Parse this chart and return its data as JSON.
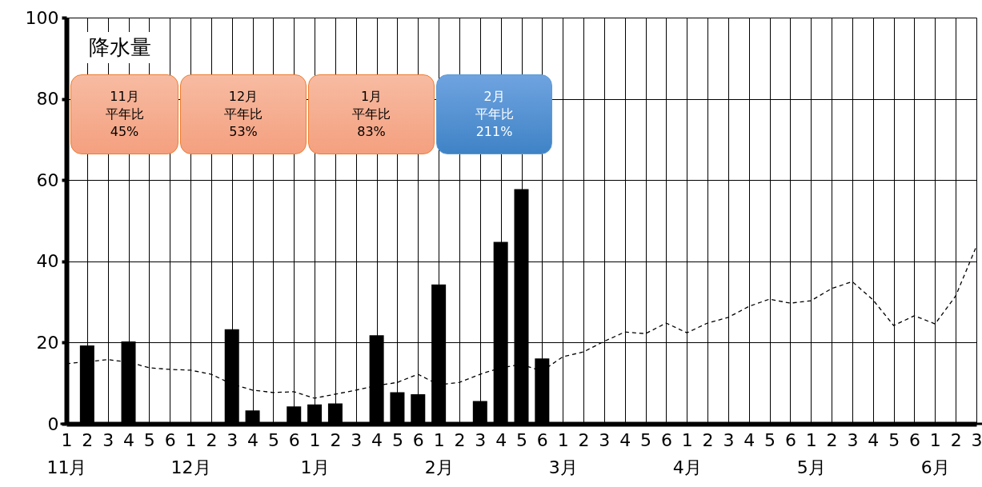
{
  "chart_data": {
    "type": "bar",
    "title": "降水量",
    "categories": [
      "1\n11月",
      "2",
      "3",
      "4",
      "5",
      "6",
      "1\n12月",
      "2",
      "3",
      "4",
      "5",
      "6",
      "1\n1月",
      "2",
      "3",
      "4",
      "5",
      "6",
      "1\n2月",
      "2",
      "3",
      "4",
      "5",
      "6",
      "1\n3月",
      "2",
      "3",
      "4",
      "5",
      "6",
      "1\n4月",
      "2",
      "3",
      "4",
      "5",
      "6",
      "1\n5月",
      "2",
      "3",
      "4",
      "5",
      "6",
      "1\n6月",
      "2",
      "3"
    ],
    "series": [
      {
        "color": "#000000",
        "values": [
          0,
          19,
          0,
          20,
          0,
          0,
          0,
          0,
          23,
          3,
          0,
          4,
          4.5,
          4.7,
          0,
          21.5,
          7.5,
          7,
          34,
          0,
          5.3,
          44.5,
          57.5,
          15.8,
          0,
          0,
          0,
          0,
          0,
          0,
          0,
          0,
          0,
          0,
          0,
          0,
          0,
          0,
          0,
          0,
          0,
          0,
          0,
          0,
          0
        ]
      },
      {
        "type": "line",
        "color": "#000000",
        "line_style": "dashed",
        "marker": "none",
        "values": [
          14.8,
          15.3,
          15.8,
          15.2,
          13.8,
          13.4,
          13.2,
          12.2,
          9.8,
          8.3,
          7.7,
          7.9,
          6.3,
          7.3,
          8.3,
          9.4,
          10.2,
          12.2,
          9.6,
          10.2,
          12.2,
          13.8,
          14.6,
          13,
          16.5,
          17.7,
          20.3,
          22.6,
          22.2,
          24.8,
          22.4,
          24.8,
          26.2,
          28.9,
          30.7,
          29.7,
          30.3,
          33.3,
          35,
          30.5,
          24.2,
          26.6,
          24.6,
          31.5,
          43.7
        ]
      }
    ],
    "ylim": [
      0,
      100
    ],
    "yticks": [
      0,
      20,
      40,
      60,
      80,
      100
    ],
    "grid": true,
    "annotations": [
      "11月",
      "平年比",
      "45%",
      "12月",
      "平年比",
      "53%",
      "1月",
      "平年比",
      "83%",
      "2月",
      "平年比",
      "211%"
    ]
  }
}
